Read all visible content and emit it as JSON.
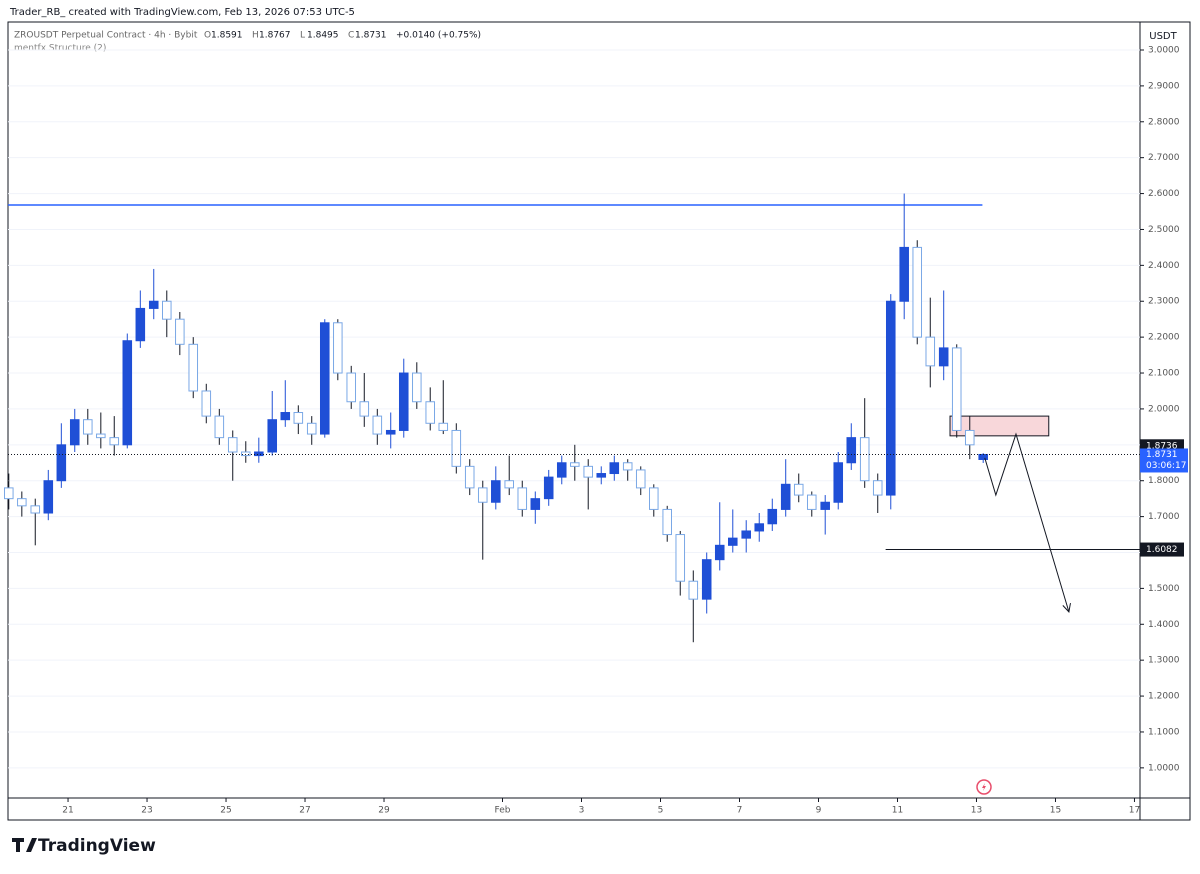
{
  "header": {
    "watermark": "Trader_RB_ created with TradingView.com, Feb 13, 2026 07:53 UTC-5",
    "symbol": "ZROUSDT Perpetual Contract · 4h · Bybit",
    "change": "+0.0140 (+0.75%)",
    "indicator": "mentfx Structure (2)",
    "brand": "TradingView"
  },
  "chart_data": {
    "type": "candlestick",
    "y_unit": "USDT",
    "up_color": "#1f4fd6",
    "down_color": "#7aa8e6",
    "x": [
      19.5,
      19.83,
      20.17,
      20.5,
      20.83,
      21.17,
      21.5,
      21.83,
      22.17,
      22.5,
      22.83,
      23.17,
      23.5,
      23.83,
      24.17,
      24.5,
      24.83,
      25.17,
      25.5,
      25.83,
      26.17,
      26.5,
      26.83,
      27.17,
      27.5,
      27.83,
      28.17,
      28.5,
      28.83,
      29.17,
      29.5,
      29.83,
      30.17,
      30.5,
      30.83,
      31.17,
      31.5,
      31.83,
      32.17,
      32.5,
      32.83,
      33.17,
      33.5,
      33.83,
      34.17,
      34.5,
      34.83,
      35.17,
      35.5,
      35.83,
      36.17,
      36.5,
      36.83,
      37.17,
      37.5,
      37.83,
      38.17,
      38.5,
      38.83,
      39.17,
      39.5,
      39.83,
      40.17,
      40.5,
      40.83,
      41.17,
      41.5,
      41.83,
      42.17,
      42.5,
      42.83,
      43.17,
      43.5,
      43.83,
      44.17
    ],
    "open": [
      1.78,
      1.75,
      1.73,
      1.71,
      1.8,
      1.9,
      1.97,
      1.93,
      1.92,
      1.9,
      2.19,
      2.28,
      2.3,
      2.25,
      2.18,
      2.05,
      1.98,
      1.92,
      1.88,
      1.87,
      1.88,
      1.97,
      1.99,
      1.96,
      1.93,
      2.24,
      2.1,
      2.02,
      1.98,
      1.93,
      1.94,
      2.1,
      2.02,
      1.96,
      1.94,
      1.84,
      1.78,
      1.74,
      1.8,
      1.78,
      1.72,
      1.75,
      1.81,
      1.85,
      1.84,
      1.81,
      1.82,
      1.85,
      1.83,
      1.78,
      1.72,
      1.65,
      1.52,
      1.47,
      1.58,
      1.62,
      1.64,
      1.66,
      1.68,
      1.72,
      1.79,
      1.76,
      1.72,
      1.74,
      1.85,
      1.92,
      1.8,
      1.76,
      2.3,
      2.45,
      2.2,
      2.12,
      2.17,
      1.94,
      1.8591
    ],
    "high": [
      1.82,
      1.77,
      1.75,
      1.83,
      1.96,
      2.0,
      2.0,
      1.99,
      1.98,
      2.21,
      2.33,
      2.39,
      2.33,
      2.27,
      2.2,
      2.07,
      2.0,
      1.94,
      1.91,
      1.92,
      2.05,
      2.08,
      2.01,
      1.98,
      2.25,
      2.25,
      2.12,
      2.1,
      2.0,
      1.99,
      2.14,
      2.13,
      2.06,
      2.08,
      1.96,
      1.86,
      1.8,
      1.84,
      1.87,
      1.8,
      1.77,
      1.83,
      1.87,
      1.9,
      1.86,
      1.84,
      1.87,
      1.86,
      1.84,
      1.79,
      1.73,
      1.66,
      1.55,
      1.6,
      1.74,
      1.72,
      1.69,
      1.71,
      1.75,
      1.86,
      1.82,
      1.77,
      1.76,
      1.88,
      1.96,
      2.03,
      1.82,
      2.32,
      2.6,
      2.47,
      2.31,
      2.33,
      2.18,
      1.98,
      1.8767
    ],
    "low": [
      1.72,
      1.7,
      1.62,
      1.69,
      1.78,
      1.88,
      1.9,
      1.89,
      1.87,
      1.89,
      2.17,
      2.25,
      2.2,
      2.15,
      2.03,
      1.96,
      1.9,
      1.8,
      1.85,
      1.85,
      1.87,
      1.95,
      1.93,
      1.9,
      1.92,
      2.08,
      2.0,
      1.95,
      1.9,
      1.89,
      1.92,
      2.0,
      1.94,
      1.93,
      1.82,
      1.76,
      1.58,
      1.72,
      1.76,
      1.7,
      1.68,
      1.73,
      1.79,
      1.8,
      1.72,
      1.79,
      1.8,
      1.8,
      1.76,
      1.7,
      1.63,
      1.48,
      1.35,
      1.43,
      1.55,
      1.6,
      1.6,
      1.63,
      1.66,
      1.7,
      1.74,
      1.7,
      1.65,
      1.72,
      1.83,
      1.78,
      1.71,
      1.72,
      2.25,
      2.18,
      2.06,
      2.08,
      1.92,
      1.86,
      1.8495
    ],
    "close": [
      1.75,
      1.73,
      1.71,
      1.8,
      1.9,
      1.97,
      1.93,
      1.92,
      1.9,
      2.19,
      2.28,
      2.3,
      2.25,
      2.18,
      2.05,
      1.98,
      1.92,
      1.88,
      1.87,
      1.88,
      1.97,
      1.99,
      1.96,
      1.93,
      2.24,
      2.1,
      2.02,
      1.98,
      1.93,
      1.94,
      2.1,
      2.02,
      1.96,
      1.94,
      1.84,
      1.78,
      1.74,
      1.8,
      1.78,
      1.72,
      1.75,
      1.81,
      1.85,
      1.84,
      1.81,
      1.82,
      1.85,
      1.83,
      1.78,
      1.72,
      1.65,
      1.52,
      1.47,
      1.58,
      1.62,
      1.64,
      1.66,
      1.68,
      1.72,
      1.79,
      1.76,
      1.72,
      1.74,
      1.85,
      1.92,
      1.8,
      1.76,
      2.3,
      2.45,
      2.2,
      2.12,
      2.17,
      1.94,
      1.9,
      1.8731
    ],
    "xlim": [
      19.48,
      48.14
    ],
    "ylim": [
      0.916,
      3.078
    ],
    "xticks": [
      21,
      23,
      25,
      27,
      29,
      {
        "value": 32,
        "label": "Feb"
      },
      {
        "value": 34,
        "label": "3"
      },
      {
        "value": 36,
        "label": "5"
      },
      {
        "value": 38,
        "label": "7"
      },
      {
        "value": 40,
        "label": "9"
      },
      {
        "value": 42,
        "label": "11"
      },
      {
        "value": 44,
        "label": "13"
      },
      {
        "value": 46,
        "label": "15"
      },
      {
        "value": 48,
        "label": "17"
      }
    ],
    "yticks": [
      {
        "value": 1.0,
        "label": "1.0000"
      },
      {
        "value": 1.1,
        "label": "1.1000"
      },
      {
        "value": 1.2,
        "label": "1.2000"
      },
      {
        "value": 1.3,
        "label": "1.3000"
      },
      {
        "value": 1.4,
        "label": "1.4000"
      },
      {
        "value": 1.5,
        "label": "1.5000"
      },
      {
        "value": 1.6,
        "label": "1.6000"
      },
      {
        "value": 1.7,
        "label": "1.7000"
      },
      {
        "value": 1.8,
        "label": "1.8000"
      },
      {
        "value": 1.9,
        "label": "1.9000"
      },
      {
        "value": 2.0,
        "label": "2.0000"
      },
      {
        "value": 2.1,
        "label": "2.1000"
      },
      {
        "value": 2.2,
        "label": "2.2000"
      },
      {
        "value": 2.3,
        "label": "2.3000"
      },
      {
        "value": 2.4,
        "label": "2.4000"
      },
      {
        "value": 2.5,
        "label": "2.5000"
      },
      {
        "value": 2.6,
        "label": "2.6000"
      },
      {
        "value": 2.7,
        "label": "2.7000"
      },
      {
        "value": 2.8,
        "label": "2.8000"
      },
      {
        "value": 2.9,
        "label": "2.9000"
      },
      {
        "value": 3.0,
        "label": "3.0000"
      }
    ],
    "grid": true,
    "resistance": {
      "value": 2.568,
      "x_end": 44.15,
      "color": "#2962ff"
    },
    "level": {
      "value": 1.6082,
      "x_start": 41.7
    },
    "mark_price": 1.8736,
    "countdown": "03:06:17",
    "zone": {
      "x": [
        43.33,
        45.83
      ],
      "y": [
        1.925,
        1.98
      ],
      "color": "#f8d7da"
    },
    "projection": {
      "x": [
        44.21,
        44.49,
        45.0,
        46.34
      ],
      "y": [
        1.8635,
        1.76,
        1.93,
        1.4345
      ]
    }
  }
}
